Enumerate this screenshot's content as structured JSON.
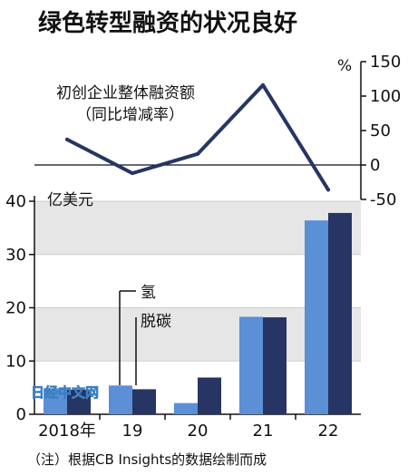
{
  "chart_data": {
    "type": "bar+line",
    "title": "绿色转型融资的状况良好",
    "categories": [
      "2018年",
      "19",
      "20",
      "21",
      "22"
    ],
    "bars": {
      "unit_label": "亿美元",
      "ylim": [
        0,
        40
      ],
      "yticks": [
        0,
        10,
        20,
        30,
        40
      ],
      "series": [
        {
          "name": "",
          "color": "#5b8fd6",
          "values": [
            4.9,
            5.4,
            2.1,
            18.3,
            36.4
          ]
        },
        {
          "name": "",
          "color": "#263563",
          "values": [
            4.6,
            4.7,
            6.9,
            18.2,
            37.8
          ]
        }
      ],
      "legend_lines": [
        "氢",
        "脱碳"
      ]
    },
    "line": {
      "label_lines": [
        "初创企业整体融资额",
        "（同比增减率）"
      ],
      "unit_label": "%",
      "color": "#263563",
      "ylim": [
        -50,
        150
      ],
      "yticks": [
        150,
        100,
        50,
        0,
        -50
      ],
      "values": [
        37,
        -12,
        16,
        116,
        -36
      ]
    },
    "note": "（注）根据CB Insights的数据绘制而成",
    "watermark": "日经中文网",
    "grid_bands": true
  }
}
